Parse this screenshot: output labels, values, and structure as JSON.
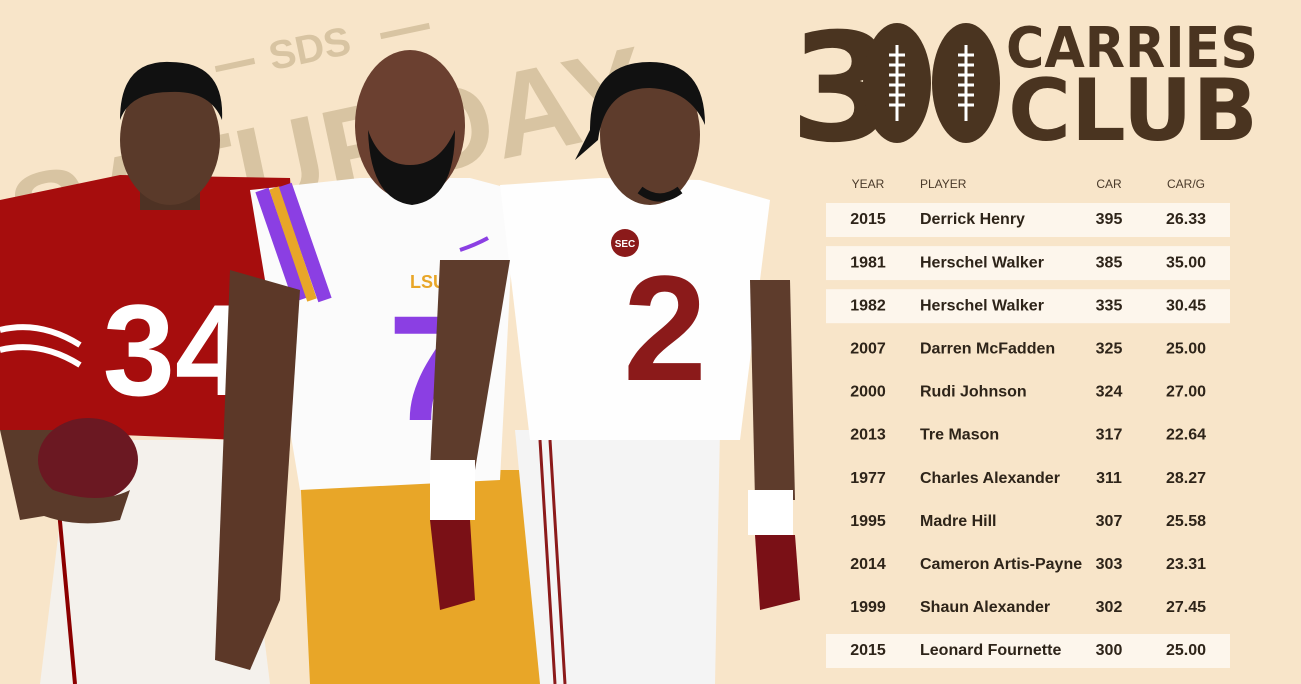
{
  "title": {
    "number": "3",
    "line1": "CARRIES",
    "line2": "CLUB"
  },
  "watermark": {
    "brand": "SDS",
    "word": "SATURDAY"
  },
  "illustration": {
    "georgia_number": "34",
    "lsu_mark": "LSU",
    "lsu_number": "7",
    "bama_patch": "SEC",
    "bama_number": "2"
  },
  "table": {
    "headers": [
      "YEAR",
      "PLAYER",
      "CAR",
      "CAR/G"
    ],
    "rows": [
      [
        "2015",
        "Derrick Henry",
        "395",
        "26.33"
      ],
      [
        "1981",
        "Herschel Walker",
        "385",
        "35.00"
      ],
      [
        "1982",
        "Herschel Walker",
        "335",
        "30.45"
      ],
      [
        "2007",
        "Darren McFadden",
        "325",
        "25.00"
      ],
      [
        "2000",
        "Rudi Johnson",
        "324",
        "27.00"
      ],
      [
        "2013",
        "Tre Mason",
        "317",
        "22.64"
      ],
      [
        "1977",
        "Charles Alexander",
        "311",
        "28.27"
      ],
      [
        "1995",
        "Madre Hill",
        "307",
        "25.58"
      ],
      [
        "2014",
        "Cameron Artis-Payne",
        "303",
        "23.31"
      ],
      [
        "1999",
        "Shaun Alexander",
        "302",
        "27.45"
      ],
      [
        "2015",
        "Leonard Fournette",
        "300",
        "25.00"
      ]
    ]
  }
}
